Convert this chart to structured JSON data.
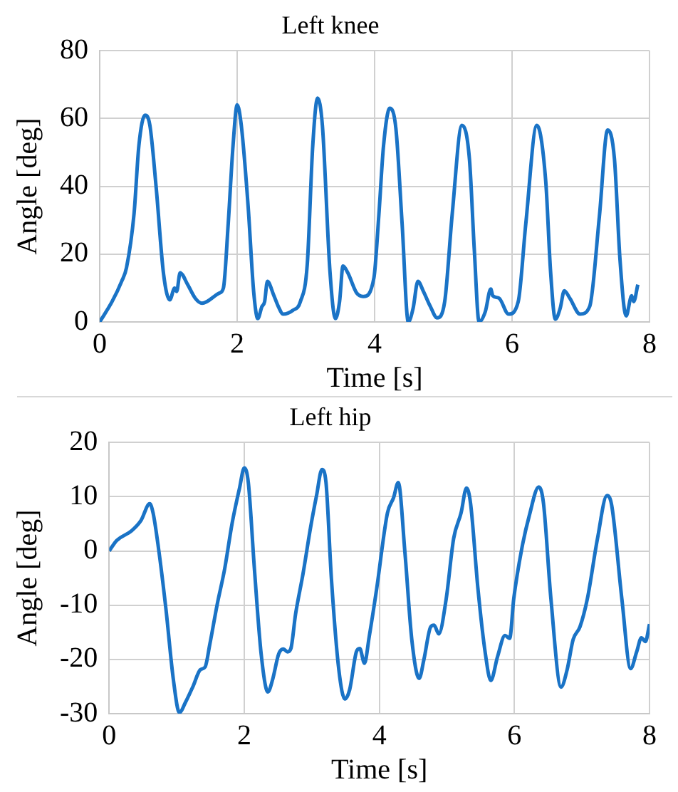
{
  "chart_data": [
    {
      "type": "line",
      "title": "Left knee",
      "xlabel": "Time [s]",
      "ylabel": "Angle [deg]",
      "xlim": [
        0,
        8
      ],
      "ylim": [
        0,
        80
      ],
      "xticks": [
        0,
        2,
        4,
        6,
        8
      ],
      "yticks": [
        0,
        20,
        40,
        60,
        80
      ],
      "grid": true,
      "line_style": "solid",
      "series": [
        {
          "color": "#1a73c6",
          "x": [
            0,
            0.18,
            0.32,
            0.39,
            0.5,
            0.57,
            0.66,
            0.73,
            0.82,
            0.93,
            1.02,
            1.09,
            1.12,
            1.17,
            1.28,
            1.39,
            1.49,
            1.74,
            1.8,
            1.87,
            1.94,
            2.0,
            2.06,
            2.16,
            2.24,
            2.3,
            2.36,
            2.4,
            2.44,
            2.53,
            2.6,
            2.67,
            2.81,
            2.92,
            3.02,
            3.1,
            3.17,
            3.24,
            3.35,
            3.43,
            3.49,
            3.54,
            3.61,
            3.74,
            3.84,
            3.99,
            4.06,
            4.13,
            4.22,
            4.31,
            4.4,
            4.49,
            4.56,
            4.63,
            4.71,
            4.81,
            4.91,
            5.02,
            5.13,
            5.27,
            5.38,
            5.45,
            5.52,
            5.61,
            5.69,
            5.72,
            5.81,
            5.95,
            6.09,
            6.2,
            6.36,
            6.49,
            6.56,
            6.63,
            6.7,
            6.76,
            6.84,
            6.99,
            7.13,
            7.27,
            7.39,
            7.49,
            7.57,
            7.66,
            7.74,
            7.77,
            7.83
          ],
          "values": [
            0,
            6,
            12,
            16,
            32,
            52,
            61,
            58,
            40,
            14,
            6.5,
            10,
            9,
            14.5,
            11,
            7,
            5.5,
            8.5,
            10,
            29,
            52,
            64,
            58,
            34,
            9,
            1,
            4.5,
            6,
            12,
            8,
            4.5,
            2.3,
            3.4,
            6,
            17,
            52,
            66,
            58,
            15,
            1,
            6,
            16.5,
            14.5,
            8.5,
            7.5,
            13,
            31,
            52,
            63,
            57,
            29,
            0,
            4,
            12,
            9,
            4.6,
            1.2,
            6,
            32,
            58,
            48,
            21.5,
            0,
            3,
            9.7,
            7.7,
            7,
            2.3,
            6,
            29,
            58,
            41.5,
            15,
            0.8,
            4,
            9.2,
            7,
            2.3,
            4.6,
            31,
            56.6,
            48,
            18.5,
            1.8,
            7.7,
            6,
            11
          ]
        }
      ]
    },
    {
      "type": "line",
      "title": "Left hip",
      "xlabel": "Time [s]",
      "ylabel": "Angle [deg]",
      "xlim": [
        0,
        8
      ],
      "ylim": [
        -30,
        20
      ],
      "xticks": [
        0,
        2,
        4,
        6,
        8
      ],
      "yticks": [
        -30,
        -20,
        -10,
        0,
        10,
        20
      ],
      "grid": true,
      "line_style": "solid",
      "series": [
        {
          "color": "#1a73c6",
          "x": [
            0,
            0.11,
            0.33,
            0.47,
            0.6,
            0.65,
            0.73,
            0.84,
            0.95,
            1.04,
            1.13,
            1.24,
            1.35,
            1.42,
            1.49,
            1.6,
            1.71,
            1.82,
            1.93,
            2.0,
            2.06,
            2.15,
            2.25,
            2.35,
            2.42,
            2.51,
            2.58,
            2.64,
            2.69,
            2.76,
            2.87,
            2.98,
            3.07,
            3.15,
            3.21,
            3.29,
            3.4,
            3.49,
            3.56,
            3.66,
            3.71,
            3.78,
            3.85,
            3.96,
            4.12,
            4.21,
            4.28,
            4.38,
            4.48,
            4.59,
            4.66,
            4.76,
            4.81,
            4.88,
            4.99,
            5.1,
            5.21,
            5.29,
            5.35,
            5.46,
            5.57,
            5.65,
            5.75,
            5.86,
            5.93,
            5.99,
            6.11,
            6.22,
            6.36,
            6.43,
            6.54,
            6.69,
            6.78,
            6.87,
            6.97,
            7.08,
            7.23,
            7.37,
            7.44,
            7.59,
            7.72,
            7.81,
            7.88,
            7.94,
            8.0
          ],
          "values": [
            0,
            1.9,
            3.7,
            5.6,
            8.7,
            7,
            0.5,
            -10.7,
            -23.7,
            -29.8,
            -27.9,
            -25,
            -21.9,
            -21.4,
            -17.2,
            -9.8,
            -3.3,
            5.1,
            11.6,
            15.3,
            12.6,
            -3.3,
            -19,
            -26,
            -23.7,
            -19,
            -18.1,
            -18.6,
            -18,
            -11.6,
            -4.2,
            4.2,
            10.2,
            15,
            12.6,
            -5.1,
            -21.9,
            -27.3,
            -25.6,
            -18.6,
            -18,
            -20.7,
            -15.8,
            -7,
            7,
            9.8,
            12.6,
            -0.5,
            -16.3,
            -23.5,
            -20,
            -14,
            -13.7,
            -15.3,
            -8.8,
            2.3,
            7,
            11.6,
            8.8,
            -7,
            -19,
            -23.9,
            -19.5,
            -15.6,
            -16.1,
            -8.8,
            0.5,
            6.5,
            11.8,
            8.8,
            -8.8,
            -25.1,
            -21.9,
            -16.3,
            -14,
            -8.8,
            2.3,
            10.2,
            8.4,
            -8.8,
            -21.7,
            -18.6,
            -16,
            -16.7,
            -13.5
          ]
        }
      ]
    }
  ]
}
